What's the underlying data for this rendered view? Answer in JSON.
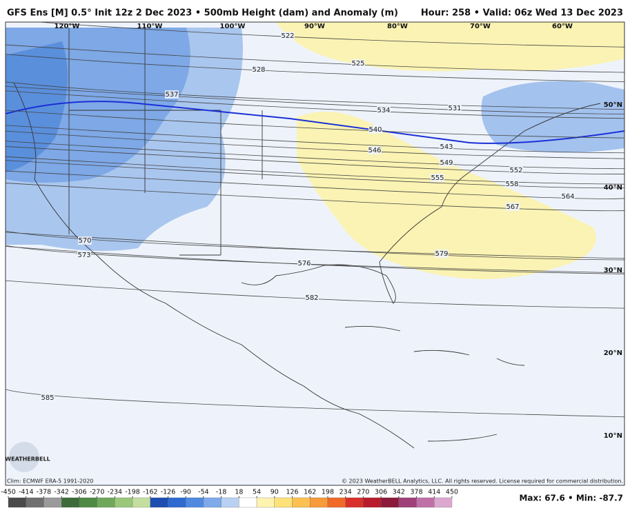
{
  "header": {
    "title": "GFS Ens [M] 0.5° Init 12z 2 Dec 2023 • 500mb Height (dam) and Anomaly (m)",
    "valid": "Hour: 258 • Valid: 06z Wed 13 Dec 2023"
  },
  "longitude_labels": [
    "120°W",
    "110°W",
    "100°W",
    "90°W",
    "80°W",
    "70°W",
    "60°W"
  ],
  "latitude_labels": [
    "50°N",
    "40°N",
    "30°N",
    "20°N",
    "10°N"
  ],
  "contour_labels": [
    "522",
    "525",
    "528",
    "531",
    "534",
    "537",
    "540",
    "543",
    "546",
    "549",
    "552",
    "555",
    "558",
    "564",
    "567",
    "570",
    "573",
    "576",
    "579",
    "582",
    "585"
  ],
  "colorbar_ticks": [
    -450,
    -414,
    -378,
    -342,
    -306,
    -270,
    -234,
    -198,
    -162,
    -126,
    -90,
    -54,
    -18,
    18,
    54,
    90,
    126,
    162,
    198,
    234,
    270,
    306,
    342,
    378,
    414,
    450
  ],
  "footer": {
    "logo": "WEATHERBELL",
    "climatology": "Clim: ECMWF ERA-5 1991-2020",
    "copyright": "© 2023 WeatherBELL Analytics, LLC. All rights reserved. License required for commercial distribution.",
    "stats": "Max: 67.6 • Min: -87.7"
  }
}
